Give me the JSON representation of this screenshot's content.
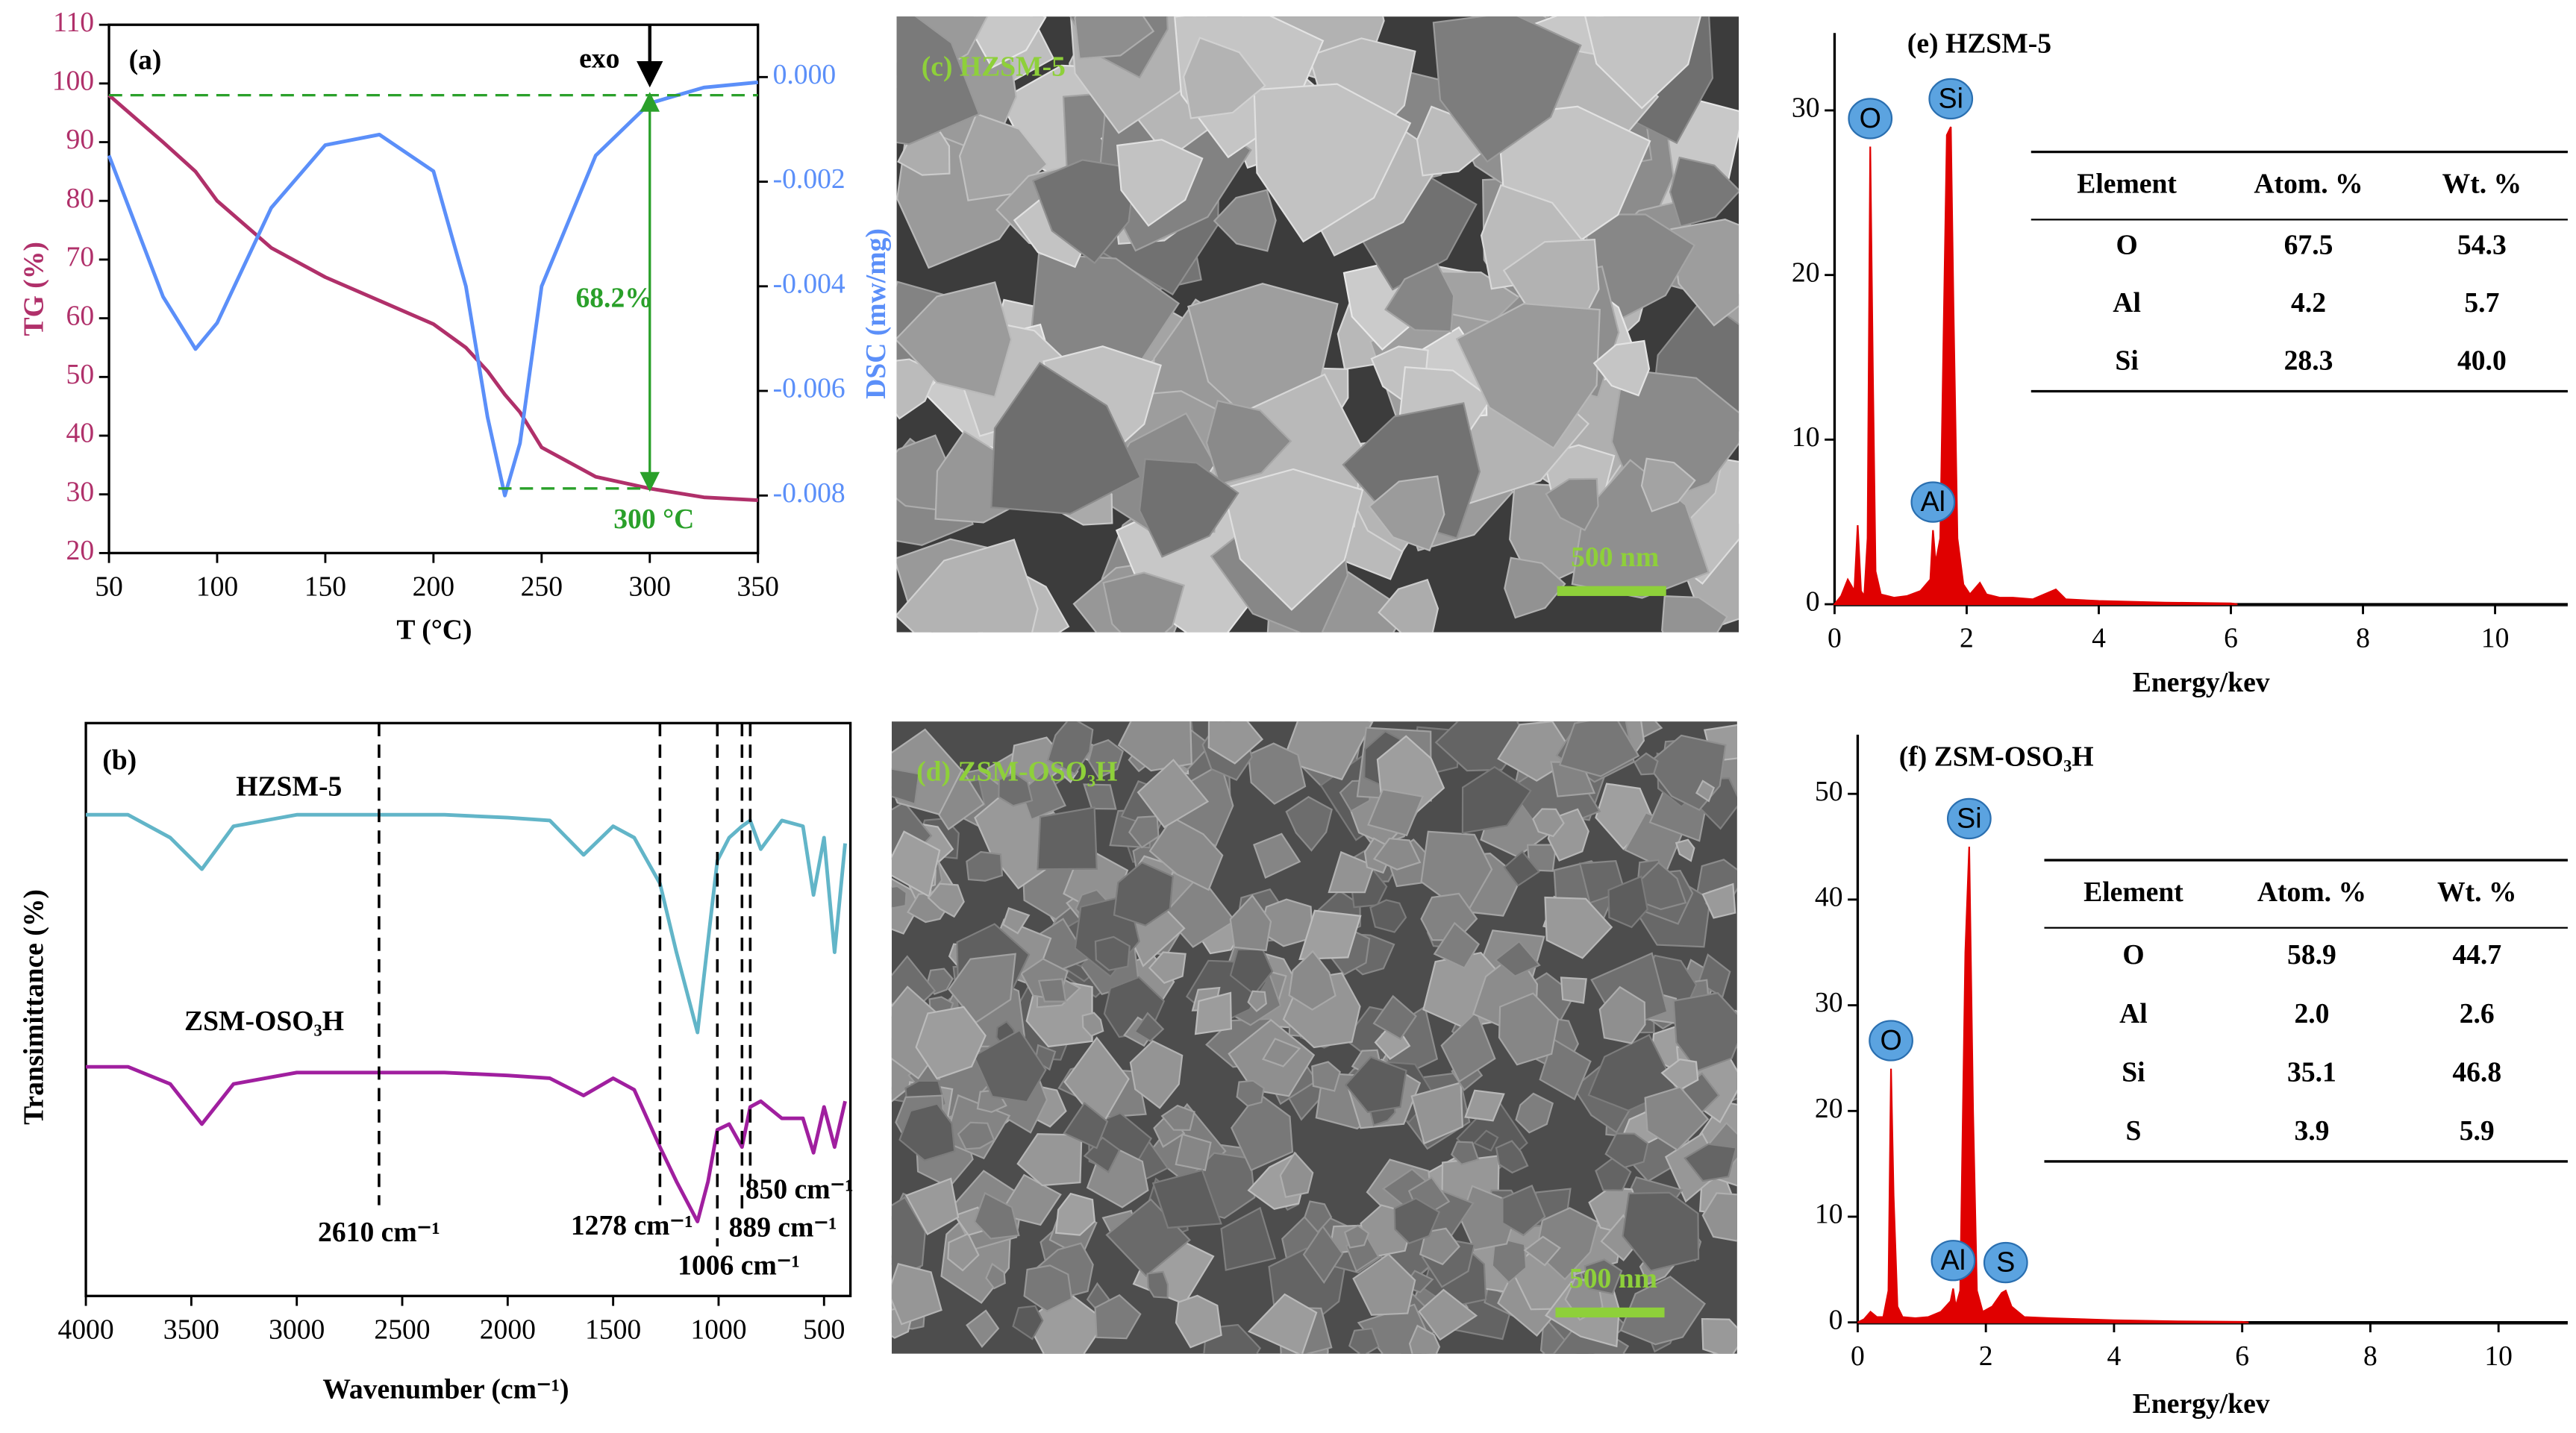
{
  "chart_data": [
    {
      "type": "line",
      "panel_label": "(a)",
      "xlabel": "T (°C)",
      "ylabel": "TG (%)",
      "y2label": "DSC (mw/mg)",
      "x": [
        50,
        75,
        90,
        100,
        125,
        150,
        175,
        200,
        215,
        225,
        233,
        240,
        250,
        275,
        300,
        325,
        350
      ],
      "series": [
        {
          "color": "#b0306a",
          "values": [
            98,
            90,
            85,
            80,
            72,
            67,
            63,
            59,
            55,
            51,
            47,
            44,
            38,
            33,
            31,
            29.5,
            29
          ]
        },
        {
          "color": "#5b8ff9",
          "axis": "y2",
          "values": [
            -0.0015,
            -0.0042,
            -0.0052,
            -0.0047,
            -0.0025,
            -0.0013,
            -0.0011,
            -0.0018,
            -0.004,
            -0.0065,
            -0.008,
            -0.007,
            -0.004,
            -0.0015,
            -0.0005,
            -0.0002,
            -0.0001
          ]
        }
      ],
      "xlim": [
        50,
        350
      ],
      "xticks": [
        50,
        100,
        150,
        200,
        250,
        300,
        350
      ],
      "ylim": [
        20,
        110
      ],
      "yticks": [
        20,
        30,
        40,
        50,
        60,
        70,
        80,
        90,
        100,
        110
      ],
      "y2lim": [
        -0.0091,
        0.001
      ],
      "y2ticks": [
        {
          "value": 0,
          "label": "0.000"
        },
        -0.002,
        -0.004,
        -0.006,
        -0.008
      ],
      "ref_x": 300,
      "annotations": [
        "exo",
        "68.2%",
        "300 °C"
      ]
    },
    {
      "type": "line",
      "panel_label": "(b)",
      "xlabel": "Wavenumber (cm⁻¹)",
      "ylabel": "Transimittance (%)",
      "x": [
        4000,
        3800,
        3600,
        3450,
        3300,
        3000,
        2610,
        2300,
        2000,
        1800,
        1640,
        1500,
        1400,
        1278,
        1200,
        1100,
        1050,
        1006,
        950,
        889,
        850,
        800,
        700,
        600,
        550,
        500,
        450,
        400
      ],
      "series": [
        {
          "name": "HZSM-5",
          "color": "#62b5c8",
          "values": [
            84,
            84,
            80,
            74.5,
            82,
            84,
            84,
            84,
            83.5,
            83,
            77,
            82,
            80,
            72,
            60,
            46,
            62,
            76,
            80,
            82,
            83,
            78,
            83,
            82,
            70,
            80,
            60,
            79
          ]
        },
        {
          "name": "ZSM-OSO₃H",
          "color": "#a01f9f",
          "values": [
            40,
            40,
            37,
            30,
            37,
            39,
            39,
            39,
            38.5,
            38,
            35,
            38,
            36,
            26,
            20,
            13,
            20,
            29,
            30,
            26,
            33,
            34,
            31,
            31,
            25,
            33,
            26,
            34
          ]
        }
      ],
      "xlim": [
        4000,
        375
      ],
      "xticks": [
        4000,
        3500,
        3000,
        2500,
        2000,
        1500,
        1000,
        500
      ],
      "ylim": [
        0,
        100
      ],
      "markers": [
        {
          "x": 2610,
          "label": "2610 cm⁻¹"
        },
        {
          "x": 1278,
          "label": "1278 cm⁻¹"
        },
        {
          "x": 1006,
          "label": "1006 cm⁻¹"
        },
        {
          "x": 889,
          "label": "889 cm⁻¹"
        },
        {
          "x": 850,
          "label": "850 cm⁻¹"
        }
      ]
    },
    {
      "type": "image",
      "panel_label": "(c) HZSM-5",
      "scale_bar": "500 nm"
    },
    {
      "type": "image",
      "panel_label": "(d) ZSM-OSO₃H",
      "scale_bar": "500 nm"
    },
    {
      "type": "area",
      "panel_label": "(e) HZSM-5",
      "xlabel": "Energy/kev",
      "color": "#e00000",
      "x": [
        0,
        0.1,
        0.2,
        0.3,
        0.35,
        0.4,
        0.45,
        0.5,
        0.54,
        0.58,
        0.62,
        0.7,
        0.9,
        1.1,
        1.3,
        1.45,
        1.49,
        1.53,
        1.6,
        1.7,
        1.76,
        1.8,
        1.86,
        1.95,
        2.05,
        2.2,
        2.3,
        2.5,
        2.7,
        3.0,
        3.35,
        3.5,
        4,
        5,
        6,
        6.1
      ],
      "values": [
        0,
        0.5,
        1.5,
        0.8,
        4.8,
        0.8,
        0.5,
        4,
        27.8,
        14,
        2,
        0.6,
        0.4,
        0.5,
        0.8,
        1.5,
        4.5,
        2.5,
        4,
        28.5,
        29,
        18,
        4,
        1.2,
        0.6,
        1.3,
        0.6,
        0.4,
        0.4,
        0.3,
        0.9,
        0.3,
        0.2,
        0.1,
        0.05,
        0
      ],
      "xlim": [
        0,
        11.1
      ],
      "xticks": [
        0,
        2,
        4,
        6,
        8,
        10
      ],
      "ylim": [
        0,
        34.7
      ],
      "yticks": [
        0,
        10,
        20,
        30
      ],
      "peaks": [
        {
          "label": "O",
          "x": 0.54
        },
        {
          "label": "Si",
          "x": 1.76
        },
        {
          "label": "Al",
          "x": 1.49
        }
      ],
      "table": {
        "header": [
          "Element",
          "Atom. %",
          "Wt. %"
        ],
        "rows": [
          [
            "O",
            "67.5",
            "54.3"
          ],
          [
            "Al",
            "4.2",
            "5.7"
          ],
          [
            "Si",
            "28.3",
            "40.0"
          ]
        ]
      }
    },
    {
      "type": "area",
      "panel_label": "(f) ZSM-OSO₃H",
      "xlabel": "Energy/kev",
      "color": "#e00000",
      "x": [
        0,
        0.1,
        0.2,
        0.3,
        0.4,
        0.48,
        0.52,
        0.56,
        0.62,
        0.7,
        0.9,
        1.1,
        1.3,
        1.45,
        1.49,
        1.53,
        1.6,
        1.68,
        1.74,
        1.8,
        1.86,
        1.95,
        2.1,
        2.25,
        2.31,
        2.4,
        2.6,
        3.0,
        3.5,
        4,
        5,
        6,
        6.1
      ],
      "values": [
        0,
        0.3,
        1,
        0.5,
        0.5,
        3,
        24,
        12,
        1.5,
        0.5,
        0.4,
        0.5,
        1,
        2,
        3.2,
        1.5,
        3,
        35,
        45,
        20,
        3,
        1,
        1.5,
        2.8,
        3,
        1.5,
        0.5,
        0.4,
        0.3,
        0.2,
        0.1,
        0.05,
        0
      ],
      "xlim": [
        0,
        11.08
      ],
      "xticks": [
        0,
        2,
        4,
        6,
        8,
        10
      ],
      "ylim": [
        0,
        55.6
      ],
      "yticks": [
        0,
        10,
        20,
        30,
        40,
        50
      ],
      "peaks": [
        {
          "label": "O",
          "x": 0.52
        },
        {
          "label": "Si",
          "x": 1.74
        },
        {
          "label": "Al",
          "x": 1.49
        },
        {
          "label": "S",
          "x": 2.31
        }
      ],
      "table": {
        "header": [
          "Element",
          "Atom. %",
          "Wt. %"
        ],
        "rows": [
          [
            "O",
            "58.9",
            "44.7"
          ],
          [
            "Al",
            "2.0",
            "2.6"
          ],
          [
            "Si",
            "35.1",
            "46.8"
          ],
          [
            "S",
            "3.9",
            "5.9"
          ]
        ]
      }
    }
  ]
}
